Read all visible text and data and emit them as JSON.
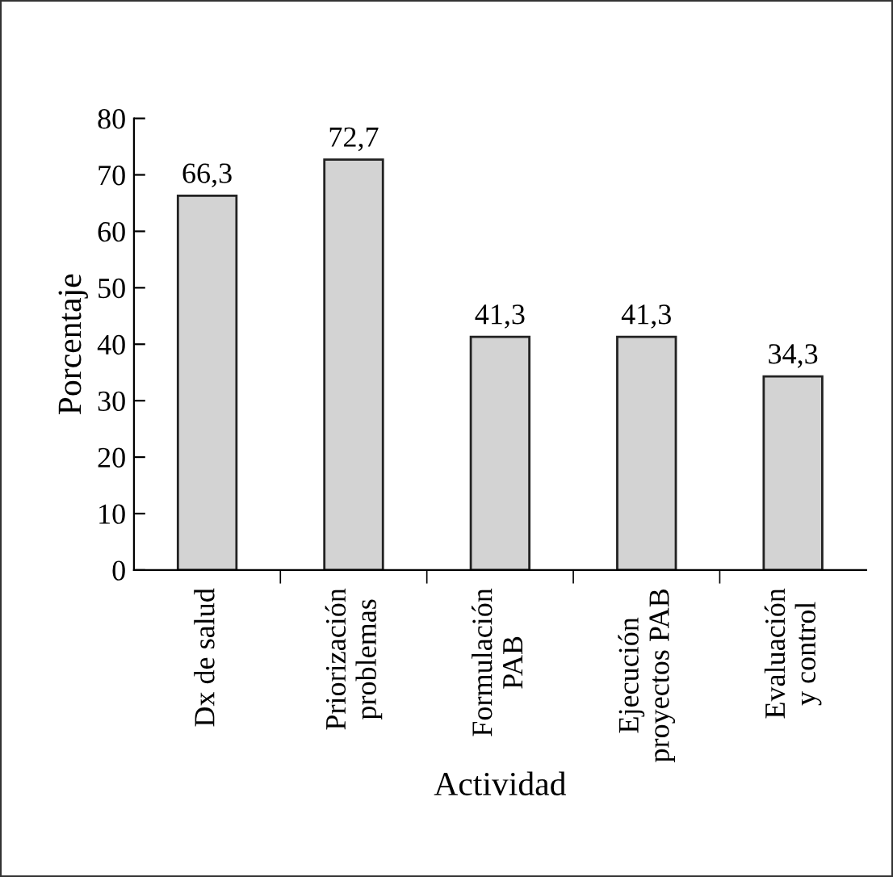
{
  "chart_data": {
    "type": "bar",
    "xlabel": "Actividad",
    "ylabel": "Porcentaje",
    "categories": [
      "Dx de salud",
      "Priorización\nproblemas",
      "Formulación\nPAB",
      "Ejecución\nproyectos PAB",
      "Evaluación\ny control"
    ],
    "values": [
      66.3,
      72.7,
      41.3,
      41.3,
      34.3
    ],
    "value_labels": [
      "66,3",
      "72,7",
      "41,3",
      "41,3",
      "34,3"
    ],
    "color": "#d3d3d3",
    "ylim": [
      0,
      80
    ],
    "yticks": [
      0,
      10,
      20,
      30,
      40,
      50,
      60,
      70,
      80
    ],
    "grid": false,
    "legend": false
  }
}
